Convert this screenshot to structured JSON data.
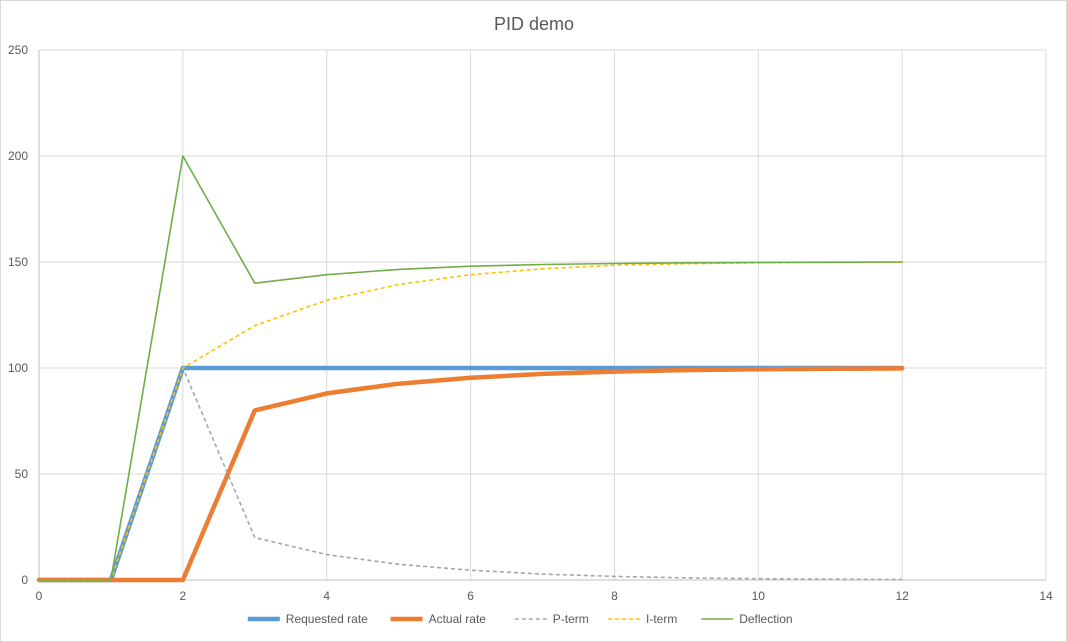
{
  "chart_data": {
    "type": "scatter",
    "title": "PID demo",
    "xlabel": "",
    "ylabel": "",
    "xlim": [
      0,
      14
    ],
    "ylim": [
      0,
      250
    ],
    "x_ticks": [
      0,
      2,
      4,
      6,
      8,
      10,
      12,
      14
    ],
    "y_ticks": [
      0,
      50,
      100,
      150,
      200,
      250
    ],
    "x_tick_labels": [
      "0",
      "2",
      "4",
      "6",
      "8",
      "10",
      "12",
      "14"
    ],
    "y_tick_labels": [
      "0",
      "50",
      "100",
      "150",
      "200",
      "250"
    ],
    "grid": true,
    "legend_position": "bottom",
    "x": [
      0,
      1,
      2,
      3,
      4,
      5,
      6,
      7,
      8,
      9,
      10,
      11,
      12
    ],
    "series": [
      {
        "name": "Requested rate",
        "color": "#5b9bd5",
        "style": "solid",
        "width": "thick",
        "values": [
          0,
          0,
          100,
          100,
          100,
          100,
          100,
          100,
          100,
          100,
          100,
          100,
          100
        ]
      },
      {
        "name": "Actual rate",
        "color": "#ed7d31",
        "style": "solid",
        "width": "thick",
        "values": [
          0,
          0,
          0,
          80,
          88,
          92.6,
          95.4,
          97.2,
          98.3,
          99,
          99.4,
          99.6,
          99.8
        ]
      },
      {
        "name": "P-term",
        "color": "#a5a5a5",
        "style": "dashed",
        "width": "thin",
        "values": [
          0,
          0,
          100,
          20,
          12,
          7.4,
          4.6,
          2.8,
          1.7,
          1,
          0.6,
          0.4,
          0.2
        ]
      },
      {
        "name": "I-term",
        "color": "#ffc000",
        "style": "dashed",
        "width": "thin",
        "values": [
          0,
          0,
          100,
          120,
          132,
          139.4,
          144,
          146.8,
          148.5,
          149.2,
          149.6,
          149.8,
          149.9
        ]
      },
      {
        "name": "Deflection",
        "color": "#70ad47",
        "style": "solid",
        "width": "thin",
        "values": [
          0,
          0,
          200,
          140,
          144,
          146.5,
          148,
          148.8,
          149.3,
          149.6,
          149.8,
          149.9,
          150
        ]
      }
    ]
  }
}
